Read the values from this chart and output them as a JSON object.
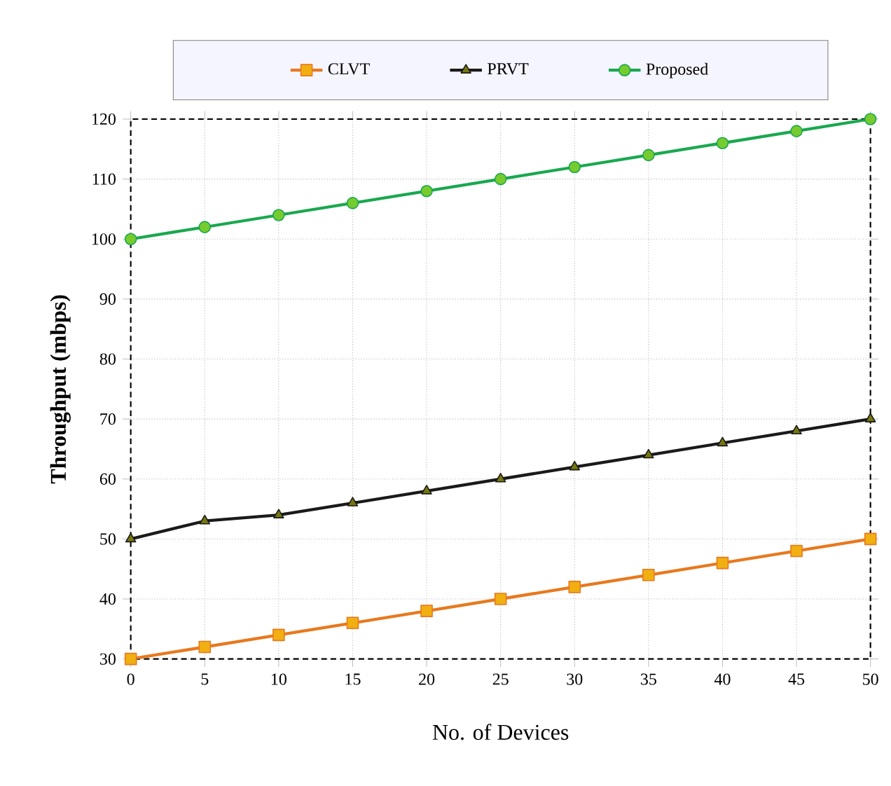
{
  "chart_data": {
    "type": "line",
    "xlabel": "No. of Devices",
    "ylabel": "Throughput (mbps)",
    "x": [
      0,
      5,
      10,
      15,
      20,
      25,
      30,
      35,
      40,
      45,
      50
    ],
    "series": [
      {
        "name": "CLVT",
        "color": "#e8791e",
        "marker": "square",
        "values": [
          30,
          32,
          34,
          36,
          38,
          40,
          42,
          44,
          46,
          48,
          50
        ]
      },
      {
        "name": "PRVT",
        "color": "#1a1a1a",
        "marker": "triangle",
        "values": [
          50,
          53,
          54,
          56,
          58,
          60,
          62,
          64,
          66,
          68,
          70
        ]
      },
      {
        "name": "Proposed",
        "color": "#1aa84f",
        "marker": "circle",
        "values": [
          100,
          102,
          104,
          106,
          108,
          110,
          112,
          114,
          116,
          118,
          120
        ]
      }
    ],
    "xlim": [
      0,
      50
    ],
    "ylim": [
      30,
      120
    ],
    "xticks": [
      0,
      5,
      10,
      15,
      20,
      25,
      30,
      35,
      40,
      45,
      50
    ],
    "yticks": [
      30,
      40,
      50,
      60,
      70,
      80,
      90,
      100,
      110,
      120
    ],
    "grid": true,
    "legend": "top"
  }
}
